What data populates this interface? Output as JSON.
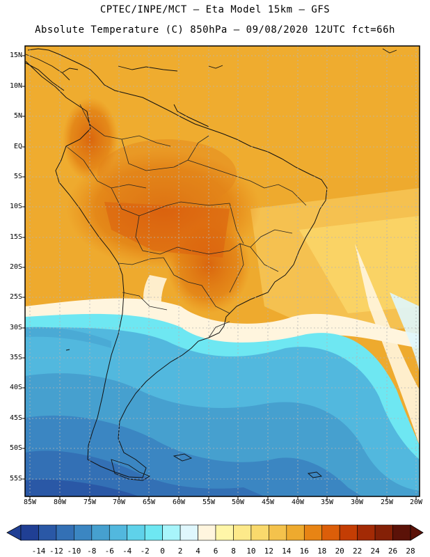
{
  "header": {
    "line1": "CPTEC/INPE/MCT —  Eta Model 15km — GFS",
    "line2": "Absolute Temperature (C) 850hPa — 09/08/2020 12UTC fct=66h"
  },
  "map": {
    "lat_labels": [
      "15N",
      "10N",
      "5N",
      "EQ",
      "5S",
      "10S",
      "15S",
      "20S",
      "25S",
      "30S",
      "35S",
      "40S",
      "45S",
      "50S",
      "55S"
    ],
    "lon_labels": [
      "85W",
      "80W",
      "75W",
      "70W",
      "65W",
      "60W",
      "55W",
      "50W",
      "45W",
      "40W",
      "35W",
      "30W",
      "25W",
      "20W"
    ]
  },
  "colorbar": {
    "ticks": [
      "-14",
      "-12",
      "-10",
      "-8",
      "-6",
      "-4",
      "-2",
      "0",
      "2",
      "4",
      "6",
      "8",
      "10",
      "12",
      "14",
      "16",
      "18",
      "20",
      "22",
      "24",
      "26",
      "28"
    ],
    "colors": [
      "#203f94",
      "#2a58a6",
      "#3370b5",
      "#3b86c2",
      "#46a0cf",
      "#52b8de",
      "#5fd2ea",
      "#6ee7f2",
      "#a8f5fb",
      "#dff7fd",
      "#fff5de",
      "#fff6a8",
      "#fde98a",
      "#f9d96c",
      "#f4c24c",
      "#eeaa2e",
      "#e88414",
      "#dc5e09",
      "#c43d04",
      "#a32a05",
      "#842006",
      "#5b1208"
    ]
  },
  "colors": {
    "frame": "#000000",
    "land_outline": "#111111",
    "grid": "#b5b5b5"
  }
}
